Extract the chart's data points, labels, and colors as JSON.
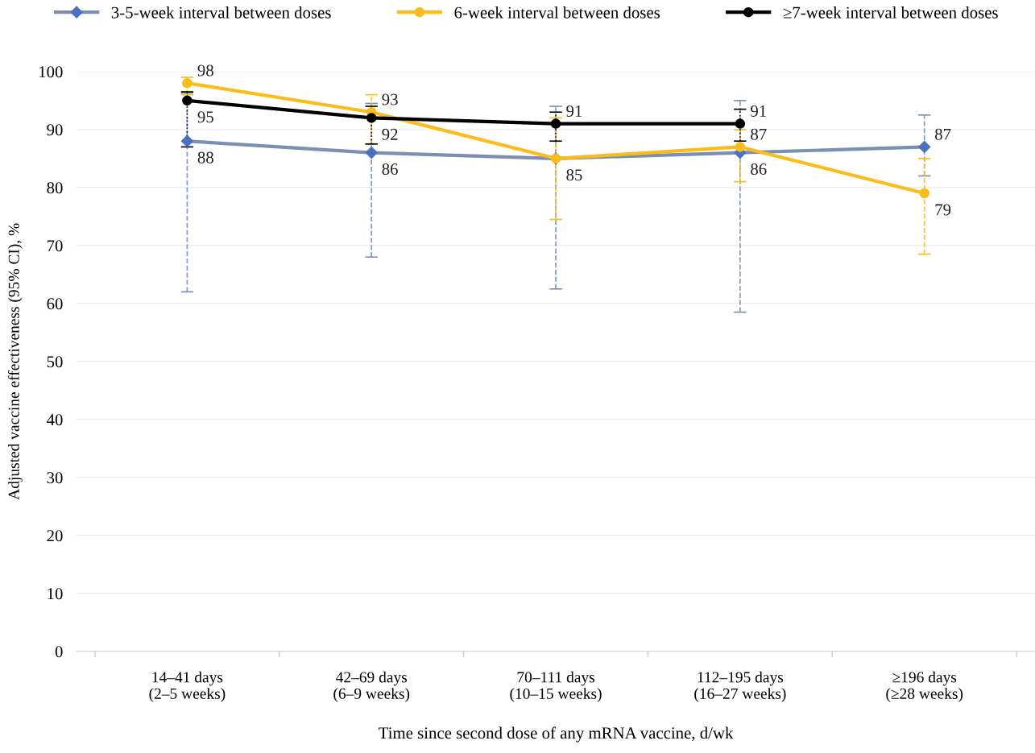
{
  "chart_data": {
    "type": "line",
    "categories": [
      "14–41 days\n(2–5 weeks)",
      "42–69 days\n(6–9 weeks)",
      "70–111 days\n(10–15 weeks)",
      "112–195 days\n(16–27 weeks)",
      "≥196 days\n(≥28 weeks)"
    ],
    "xlabel": "Time since second dose of any mRNA vaccine, d/wk",
    "ylabel": "Adjusted vaccine effectiveness (95% CI), %",
    "series": [
      {
        "name": "3-5-week interval between doses",
        "color": "#7b8fb3",
        "marker": "diamond",
        "values": [
          88,
          86,
          85,
          86,
          87
        ],
        "value_labels": [
          "88",
          "86",
          null,
          "86",
          "87"
        ],
        "errors": [
          [
            62,
            96.3
          ],
          [
            68,
            94.5
          ],
          [
            62.5,
            94
          ],
          [
            58.5,
            95
          ],
          [
            82,
            92.5
          ]
        ]
      },
      {
        "name": "6-week interval between doses",
        "color": "#fbbc1c",
        "marker": "circle",
        "values": [
          98,
          93,
          85,
          87,
          79
        ],
        "value_labels": [
          "98",
          "93",
          "85",
          "87",
          "79"
        ],
        "errors": [
          [
            96,
            99
          ],
          [
            87.5,
            96
          ],
          [
            74.5,
            92
          ],
          [
            81,
            90
          ],
          [
            68.5,
            85
          ]
        ]
      },
      {
        "name": "≥7-week interval between doses",
        "color": "#000000",
        "marker": "circle",
        "values": [
          95,
          92,
          91,
          91,
          null
        ],
        "value_labels": [
          "95",
          "92",
          "91",
          "91",
          null
        ],
        "errors": [
          [
            87,
            96.5
          ],
          [
            87.5,
            94
          ],
          [
            88,
            93
          ],
          [
            88,
            93.5
          ],
          null
        ]
      }
    ],
    "ylim": [
      0,
      100
    ],
    "yticks": [
      0,
      10,
      20,
      30,
      40,
      50,
      60,
      70,
      80,
      90,
      100
    ],
    "grid": "y",
    "legend": "top"
  }
}
